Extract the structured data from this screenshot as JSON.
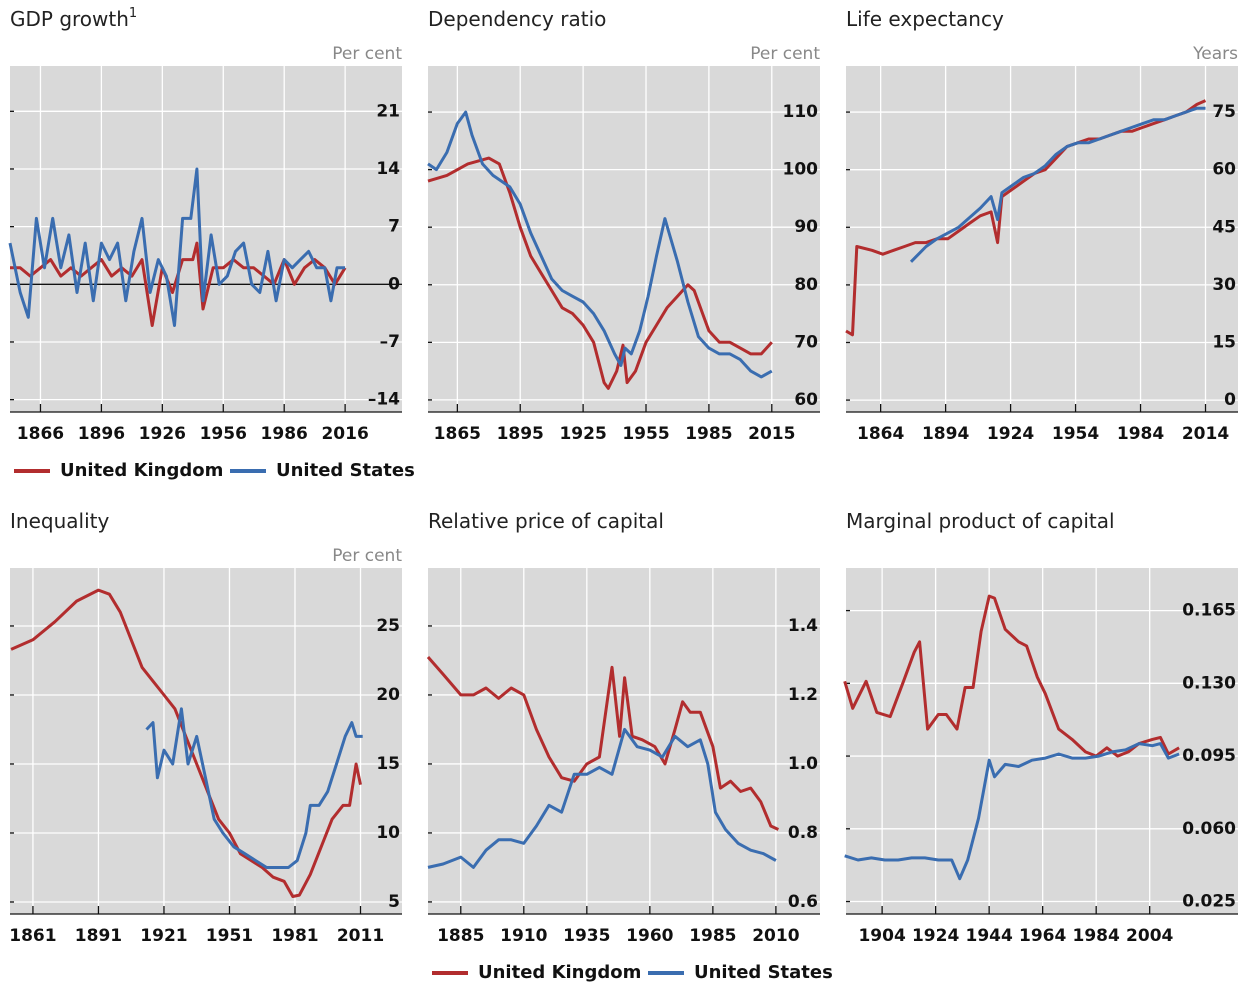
{
  "chart_data": [
    {
      "type": "line",
      "title": "GDP growth",
      "title_note": "1",
      "unit": "Per cent",
      "legend": "bottom",
      "grid": true,
      "zero_line": true,
      "xlim": [
        1851,
        2044
      ],
      "xticks": [
        1866,
        1896,
        1926,
        1956,
        1986,
        2016
      ],
      "ylim": [
        -15.5,
        26.5
      ],
      "yticks": [
        {
          "value": -14,
          "label": "–14"
        },
        {
          "value": -7,
          "label": "–7"
        },
        0,
        7,
        14,
        21
      ],
      "series": [
        {
          "name": "United Kingdom",
          "color": "#b22d2e",
          "x": [
            1851,
            1856,
            1861,
            1866,
            1871,
            1876,
            1881,
            1886,
            1891,
            1896,
            1901,
            1906,
            1911,
            1916,
            1921,
            1926,
            1931,
            1936,
            1941,
            1943,
            1946,
            1951,
            1956,
            1961,
            1966,
            1971,
            1976,
            1981,
            1986,
            1991,
            1996,
            2001,
            2006,
            2011,
            2016
          ],
          "values": [
            2,
            2,
            1,
            2,
            3,
            1,
            2,
            1,
            2,
            3,
            1,
            2,
            1,
            3,
            -5,
            2,
            -1,
            3,
            3,
            5,
            -3,
            2,
            2,
            3,
            2,
            2,
            1,
            0,
            3,
            0,
            2,
            3,
            2,
            0,
            2
          ]
        },
        {
          "name": "United States",
          "color": "#3a6db0",
          "x": [
            1851,
            1856,
            1860,
            1864,
            1868,
            1872,
            1876,
            1880,
            1884,
            1888,
            1892,
            1896,
            1900,
            1904,
            1908,
            1912,
            1916,
            1920,
            1924,
            1928,
            1932,
            1936,
            1940,
            1943,
            1946,
            1950,
            1954,
            1958,
            1962,
            1966,
            1970,
            1974,
            1978,
            1982,
            1986,
            1990,
            1994,
            1998,
            2002,
            2006,
            2009,
            2012,
            2016
          ],
          "values": [
            5,
            -1,
            -4,
            8,
            2,
            8,
            2,
            6,
            -1,
            5,
            -2,
            5,
            3,
            5,
            -2,
            4,
            8,
            -1,
            3,
            1,
            -5,
            8,
            8,
            14,
            -2,
            6,
            0,
            1,
            4,
            5,
            0,
            -1,
            4,
            -2,
            3,
            2,
            3,
            4,
            2,
            2,
            -2,
            2,
            2
          ]
        }
      ]
    },
    {
      "type": "line",
      "title": "Dependency ratio",
      "unit": "Per cent",
      "grid": true,
      "xlim": [
        1851,
        2038
      ],
      "xticks": [
        1865,
        1895,
        1925,
        1955,
        1985,
        2015
      ],
      "ylim": [
        57.9,
        118
      ],
      "yticks": [
        60,
        70,
        80,
        90,
        100,
        110
      ],
      "series": [
        {
          "color": "#b22d2e",
          "x": [
            1851,
            1860,
            1870,
            1880,
            1885,
            1890,
            1895,
            1900,
            1905,
            1910,
            1915,
            1920,
            1925,
            1930,
            1935,
            1937,
            1941,
            1944,
            1946,
            1950,
            1955,
            1960,
            1965,
            1970,
            1975,
            1978,
            1982,
            1985,
            1990,
            1995,
            2000,
            2005,
            2010,
            2015
          ],
          "values": [
            98,
            99,
            101,
            102,
            101,
            96,
            90,
            85,
            82,
            79,
            76,
            75,
            73,
            70,
            63,
            62,
            65,
            69.5,
            63,
            65,
            70,
            73,
            76,
            78,
            80,
            79,
            75,
            72,
            70,
            70,
            69,
            68,
            68,
            70
          ]
        },
        {
          "color": "#3a6db0",
          "x": [
            1851,
            1855,
            1860,
            1865,
            1869,
            1872,
            1877,
            1882,
            1890,
            1895,
            1900,
            1905,
            1910,
            1915,
            1920,
            1925,
            1930,
            1935,
            1940,
            1943,
            1945,
            1948,
            1952,
            1956,
            1960,
            1964,
            1966,
            1970,
            1975,
            1980,
            1985,
            1990,
            1995,
            2000,
            2005,
            2010,
            2015
          ],
          "values": [
            101,
            100,
            103,
            108,
            110,
            106,
            101,
            99,
            97,
            94,
            89,
            85,
            81,
            79,
            78,
            77,
            75,
            72,
            68,
            66,
            69,
            68,
            72,
            78,
            85,
            91.5,
            89,
            84,
            77,
            71,
            69,
            68,
            68,
            67,
            65,
            64,
            65
          ]
        }
      ]
    },
    {
      "type": "line",
      "title": "Life expectancy",
      "unit": "Years",
      "grid": true,
      "xlim": [
        1848,
        2029
      ],
      "xticks": [
        1864,
        1894,
        1924,
        1954,
        1984,
        2014
      ],
      "ylim": [
        -3.1,
        87
      ],
      "yticks": [
        0,
        15,
        30,
        45,
        60,
        75
      ],
      "series": [
        {
          "color": "#b22d2e",
          "x": [
            1848,
            1851,
            1853,
            1860,
            1865,
            1870,
            1875,
            1880,
            1885,
            1890,
            1895,
            1900,
            1905,
            1910,
            1915,
            1918,
            1920,
            1925,
            1930,
            1935,
            1940,
            1945,
            1950,
            1955,
            1960,
            1965,
            1970,
            1975,
            1980,
            1985,
            1990,
            1995,
            2000,
            2005,
            2010,
            2014
          ],
          "values": [
            18,
            17,
            40,
            39,
            38,
            39,
            40,
            41,
            41,
            42,
            42,
            44,
            46,
            48,
            49,
            41,
            53,
            55,
            57,
            59,
            60,
            63,
            66,
            67,
            68,
            68,
            69,
            70,
            70,
            71,
            72,
            73,
            74,
            75,
            77,
            78
          ]
        },
        {
          "color": "#3a6db0",
          "x": [
            1878,
            1885,
            1890,
            1900,
            1910,
            1915,
            1918,
            1920,
            1925,
            1930,
            1935,
            1940,
            1945,
            1950,
            1955,
            1960,
            1965,
            1970,
            1975,
            1980,
            1985,
            1990,
            1995,
            2000,
            2005,
            2010,
            2014
          ],
          "values": [
            36,
            40,
            42,
            45,
            50,
            53,
            47,
            54,
            56,
            58,
            59,
            61,
            64,
            66,
            67,
            67,
            68,
            69,
            70,
            71,
            72,
            73,
            73,
            74,
            75,
            76,
            76
          ]
        }
      ]
    },
    {
      "type": "line",
      "title": "Inequality",
      "unit": "Per cent",
      "grid": true,
      "xlim": [
        1850.5,
        2030
      ],
      "xticks": [
        1861,
        1891,
        1921,
        1951,
        1981,
        2011
      ],
      "ylim": [
        4.13,
        29.2
      ],
      "yticks": [
        5,
        10,
        15,
        20,
        25
      ],
      "series": [
        {
          "color": "#b22d2e",
          "x": [
            1851,
            1861,
            1871,
            1881,
            1891,
            1896,
            1901,
            1906,
            1911,
            1916,
            1921,
            1926,
            1931,
            1936,
            1941,
            1946,
            1951,
            1956,
            1961,
            1966,
            1971,
            1976,
            1980,
            1983,
            1988,
            1993,
            1998,
            2003,
            2006,
            2009,
            2011
          ],
          "values": [
            23.3,
            24,
            25.3,
            26.8,
            27.6,
            27.3,
            26,
            24,
            22,
            21,
            20,
            19,
            17,
            15,
            13,
            11,
            10,
            8.5,
            8,
            7.5,
            6.8,
            6.5,
            5.4,
            5.5,
            7,
            9,
            11,
            12,
            12,
            15,
            13.5
          ]
        },
        {
          "color": "#3a6db0",
          "x": [
            1913,
            1916,
            1918,
            1921,
            1925,
            1928,
            1929,
            1932,
            1936,
            1940,
            1944,
            1948,
            1953,
            1958,
            1963,
            1968,
            1973,
            1978,
            1982,
            1986,
            1988,
            1992,
            1996,
            2000,
            2004,
            2007,
            2009,
            2012
          ],
          "values": [
            17.5,
            18,
            14,
            16,
            15,
            18,
            19,
            15,
            17,
            14,
            11,
            10,
            9,
            8.5,
            8,
            7.5,
            7.5,
            7.5,
            8,
            10,
            12,
            12,
            13,
            15,
            17,
            18,
            17,
            17
          ]
        }
      ]
    },
    {
      "type": "line",
      "title": "Relative price of capital",
      "legend": "bottom",
      "grid": true,
      "xlim": [
        1872,
        2027.5
      ],
      "xticks": [
        1885,
        1910,
        1935,
        1960,
        1985,
        2010
      ],
      "ylim": [
        0.565,
        1.568
      ],
      "yticks": [
        0.6,
        0.8,
        {
          "value": 1.0,
          "label": "1.0"
        },
        1.2,
        1.4
      ],
      "series": [
        {
          "name": "United Kingdom",
          "color": "#b22d2e",
          "x": [
            1872,
            1878,
            1885,
            1890,
            1895,
            1900,
            1905,
            1910,
            1915,
            1920,
            1925,
            1930,
            1935,
            1940,
            1945,
            1948,
            1950,
            1953,
            1957,
            1962,
            1966,
            1970,
            1973,
            1976,
            1980,
            1985,
            1988,
            1992,
            1996,
            2000,
            2004,
            2008,
            2011
          ],
          "values": [
            1.31,
            1.26,
            1.2,
            1.2,
            1.22,
            1.19,
            1.22,
            1.2,
            1.1,
            1.02,
            0.96,
            0.95,
            1.0,
            1.02,
            1.28,
            1.08,
            1.25,
            1.08,
            1.07,
            1.05,
            1.0,
            1.1,
            1.18,
            1.15,
            1.15,
            1.05,
            0.93,
            0.95,
            0.92,
            0.93,
            0.89,
            0.82,
            0.81
          ]
        },
        {
          "name": "United States",
          "color": "#3a6db0",
          "x": [
            1872,
            1878,
            1885,
            1890,
            1895,
            1900,
            1905,
            1910,
            1915,
            1920,
            1925,
            1930,
            1935,
            1940,
            1945,
            1950,
            1955,
            1960,
            1965,
            1970,
            1975,
            1980,
            1983,
            1986,
            1990,
            1995,
            2000,
            2005,
            2010
          ],
          "values": [
            0.7,
            0.71,
            0.73,
            0.7,
            0.75,
            0.78,
            0.78,
            0.77,
            0.82,
            0.88,
            0.86,
            0.97,
            0.97,
            0.99,
            0.97,
            1.1,
            1.05,
            1.04,
            1.02,
            1.08,
            1.05,
            1.07,
            1.0,
            0.86,
            0.81,
            0.77,
            0.75,
            0.74,
            0.72
          ]
        }
      ]
    },
    {
      "type": "line",
      "title": "Marginal product of capital",
      "grid": true,
      "xlim": [
        1890.5,
        2037
      ],
      "xticks": [
        1904,
        1924,
        1944,
        1964,
        1984,
        2004
      ],
      "ylim": [
        0.019,
        0.1855
      ],
      "yticks": [
        0.025,
        {
          "value": 0.06,
          "label": "0.060"
        },
        0.095,
        {
          "value": 0.13,
          "label": "0.130"
        },
        0.165
      ],
      "series": [
        {
          "color": "#b22d2e",
          "x": [
            1890,
            1893,
            1898,
            1902,
            1907,
            1912,
            1916,
            1918,
            1921,
            1925,
            1928,
            1932,
            1935,
            1938,
            1941,
            1944,
            1946,
            1950,
            1955,
            1958,
            1962,
            1965,
            1970,
            1975,
            1980,
            1984,
            1988,
            1992,
            1996,
            2000,
            2005,
            2008,
            2011,
            2015
          ],
          "values": [
            0.131,
            0.118,
            0.131,
            0.116,
            0.114,
            0.131,
            0.145,
            0.15,
            0.108,
            0.115,
            0.115,
            0.108,
            0.128,
            0.128,
            0.155,
            0.172,
            0.171,
            0.156,
            0.15,
            0.148,
            0.133,
            0.125,
            0.108,
            0.103,
            0.097,
            0.095,
            0.099,
            0.095,
            0.097,
            0.101,
            0.103,
            0.104,
            0.096,
            0.099
          ]
        },
        {
          "color": "#3a6db0",
          "x": [
            1890,
            1895,
            1900,
            1905,
            1910,
            1915,
            1920,
            1925,
            1930,
            1933,
            1936,
            1940,
            1943,
            1944,
            1946,
            1950,
            1955,
            1960,
            1965,
            1970,
            1975,
            1980,
            1985,
            1990,
            1995,
            2000,
            2005,
            2008,
            2011,
            2015
          ],
          "values": [
            0.047,
            0.045,
            0.046,
            0.045,
            0.045,
            0.046,
            0.046,
            0.045,
            0.045,
            0.036,
            0.045,
            0.065,
            0.086,
            0.093,
            0.085,
            0.091,
            0.09,
            0.093,
            0.094,
            0.096,
            0.094,
            0.094,
            0.095,
            0.097,
            0.098,
            0.101,
            0.1,
            0.101,
            0.094,
            0.096
          ]
        }
      ]
    }
  ]
}
